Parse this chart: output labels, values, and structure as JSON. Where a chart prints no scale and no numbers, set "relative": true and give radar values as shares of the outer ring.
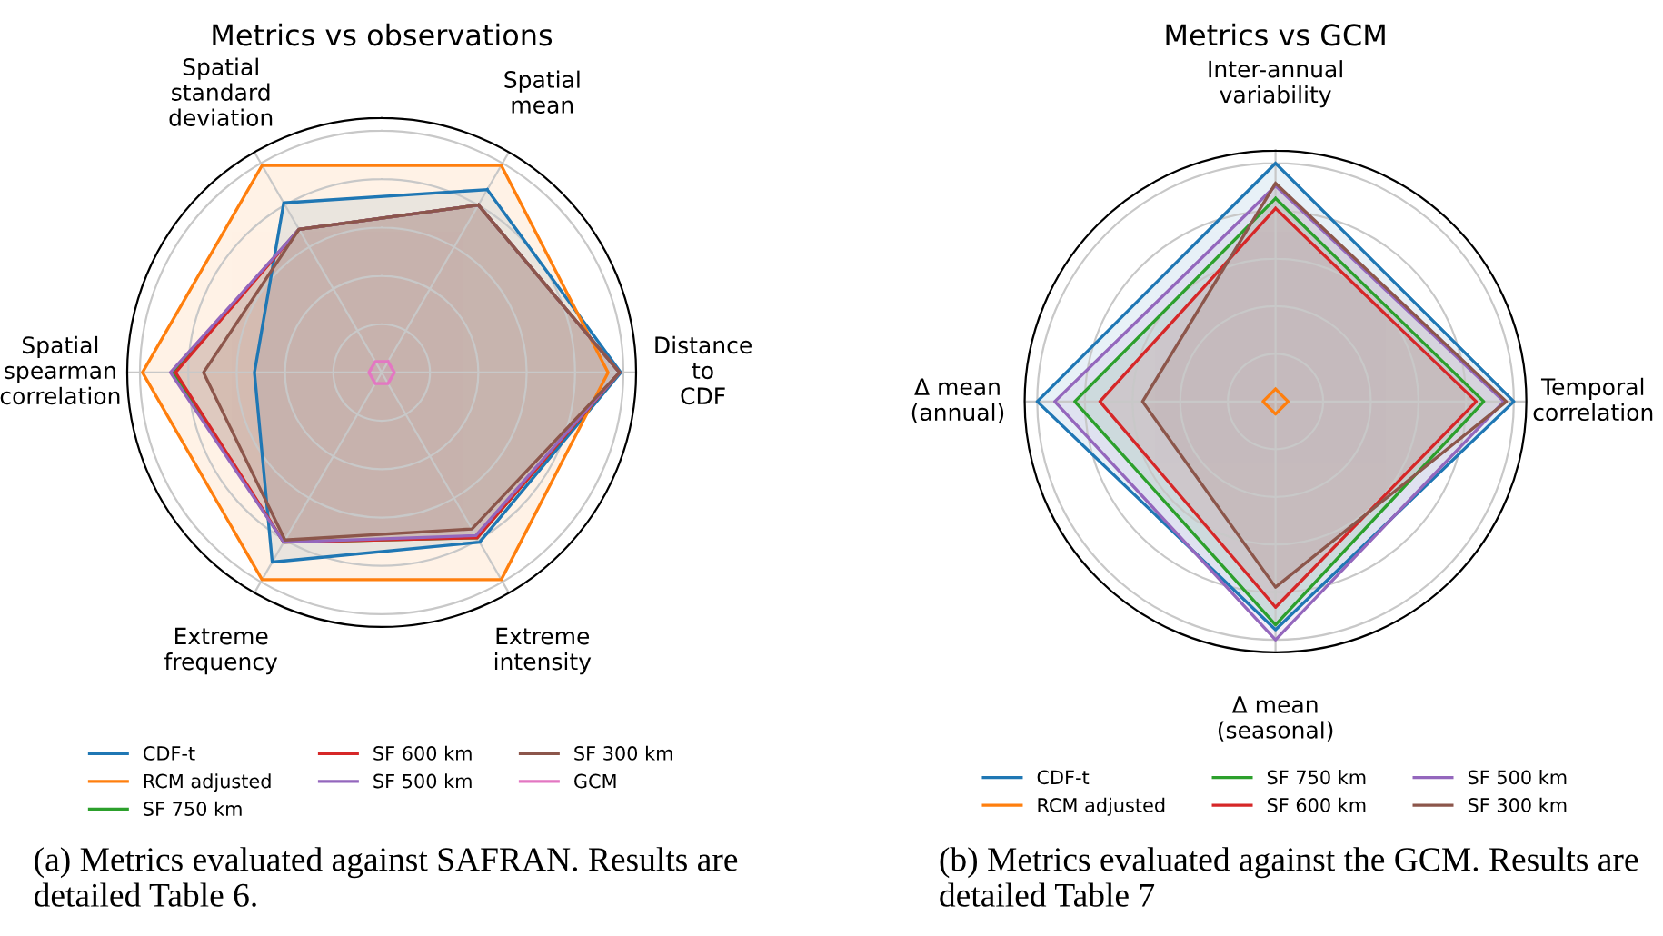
{
  "chart_data": [
    {
      "type": "radar",
      "title": "Metrics vs observations",
      "relative": true,
      "grid": true,
      "legend": "bottom",
      "categories": [
        "Spatial\nmean",
        "Distance\nto\nCDF",
        "Extreme\nintensity",
        "Extreme\nfrequency",
        "Spatial\nspearman\ncorrelation",
        "Spatial\nstandard\ndeviation"
      ],
      "series": [
        {
          "name": "CDF-t",
          "color": "#1f77b4",
          "values": [
            0.83,
            0.94,
            0.77,
            0.86,
            0.5,
            0.77
          ]
        },
        {
          "name": "RCM adjusted",
          "color": "#ff7f0e",
          "values": [
            0.94,
            0.89,
            0.94,
            0.94,
            0.94,
            0.94
          ]
        },
        {
          "name": "SF 750 km",
          "color": "#2ca02c",
          "values": [
            0.76,
            0.935,
            0.75,
            0.77,
            0.82,
            0.65
          ]
        },
        {
          "name": "SF 600 km",
          "color": "#d62728",
          "values": [
            0.76,
            0.935,
            0.75,
            0.77,
            0.81,
            0.65
          ]
        },
        {
          "name": "SF 500 km",
          "color": "#9467bd",
          "values": [
            0.76,
            0.935,
            0.74,
            0.77,
            0.83,
            0.65
          ]
        },
        {
          "name": "SF 300 km",
          "color": "#8c564b",
          "values": [
            0.76,
            0.935,
            0.71,
            0.76,
            0.7,
            0.65
          ]
        },
        {
          "name": "GCM",
          "color": "#e377c2",
          "values": [
            0.05,
            0.05,
            0.05,
            0.05,
            0.05,
            0.05
          ]
        }
      ],
      "annotations": [
        "(a) Metrics evaluated against SAFRAN. Results are detailed Table 6."
      ]
    },
    {
      "type": "radar",
      "title": "Metrics vs GCM",
      "relative": true,
      "grid": true,
      "legend": "bottom",
      "categories": [
        "Inter-annual\nvariability",
        "Temporal\ncorrelation",
        "Δ mean\n(seasonal)",
        "Δ mean\n(annual)"
      ],
      "series": [
        {
          "name": "CDF-t",
          "color": "#1f77b4",
          "values": [
            0.95,
            0.95,
            0.91,
            0.95
          ]
        },
        {
          "name": "RCM adjusted",
          "color": "#ff7f0e",
          "values": [
            0.05,
            0.05,
            0.05,
            0.05
          ]
        },
        {
          "name": "SF 750 km",
          "color": "#2ca02c",
          "values": [
            0.81,
            0.83,
            0.89,
            0.8
          ]
        },
        {
          "name": "SF 600 km",
          "color": "#d62728",
          "values": [
            0.77,
            0.8,
            0.82,
            0.7
          ]
        },
        {
          "name": "SF 500 km",
          "color": "#9467bd",
          "values": [
            0.86,
            0.91,
            0.95,
            0.88
          ]
        },
        {
          "name": "SF 300 km",
          "color": "#8c564b",
          "values": [
            0.87,
            0.92,
            0.74,
            0.53
          ]
        }
      ],
      "annotations": [
        "(b) Metrics evaluated against the GCM. Results are detailed Table 7"
      ]
    }
  ]
}
